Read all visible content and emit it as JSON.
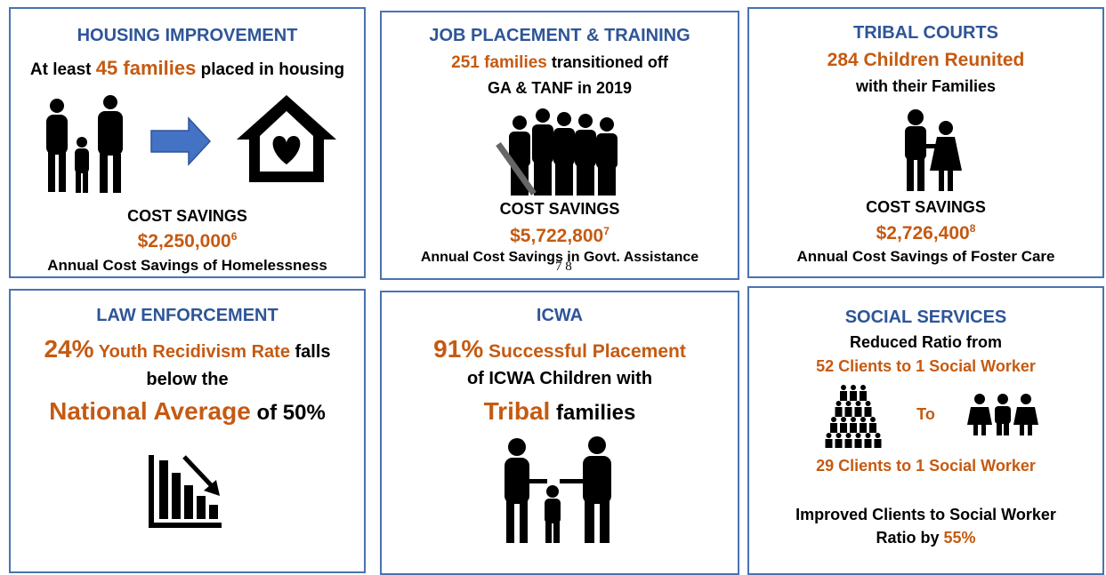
{
  "panels": [
    {
      "title": "HOUSING IMPROVEMENT",
      "lines": [
        [
          "At least ",
          "45 families",
          " placed in housing"
        ]
      ],
      "cost_label": "COST SAVINGS",
      "cost": "$2,250,000",
      "footnote": "6",
      "caption": "Annual Cost Savings of Homelessness"
    },
    {
      "title": "JOB PLACEMENT & TRAINING",
      "lines": [
        [
          "251 families",
          " transitioned off"
        ],
        [
          "GA & TANF in 2019"
        ]
      ],
      "cost_label": "COST SAVINGS",
      "cost": "$5,722,800",
      "footnote": "7",
      "caption": "Annual Cost Savings in Govt. Assistance",
      "stray": "7 8"
    },
    {
      "title": "TRIBAL COURTS",
      "lines": [
        [
          "284 Children Reunited"
        ],
        [
          "with their Families"
        ]
      ],
      "cost_label": "COST SAVINGS",
      "cost": "$2,726,400",
      "footnote": "8",
      "caption": "Annual Cost Savings of Foster Care"
    },
    {
      "title": "LAW ENFORCEMENT",
      "lines": [
        [
          "24%",
          " Youth Recidivism Rate",
          " falls"
        ],
        [
          "below the"
        ],
        [
          "National Average",
          " of 50%"
        ]
      ]
    },
    {
      "title": "ICWA",
      "lines": [
        [
          "91%",
          " Successful Placement"
        ],
        [
          "of ICWA Children with"
        ],
        [
          "Tribal",
          " families"
        ]
      ]
    },
    {
      "title": "SOCIAL SERVICES",
      "lines": [
        [
          "Reduced Ratio from"
        ],
        [
          "52 Clients to 1 Social Worker"
        ],
        [
          "To"
        ],
        [
          "29 Clients to 1 Social Worker"
        ],
        [
          "Improved Clients to Social Worker"
        ],
        [
          "Ratio by ",
          "55%"
        ]
      ]
    }
  ]
}
